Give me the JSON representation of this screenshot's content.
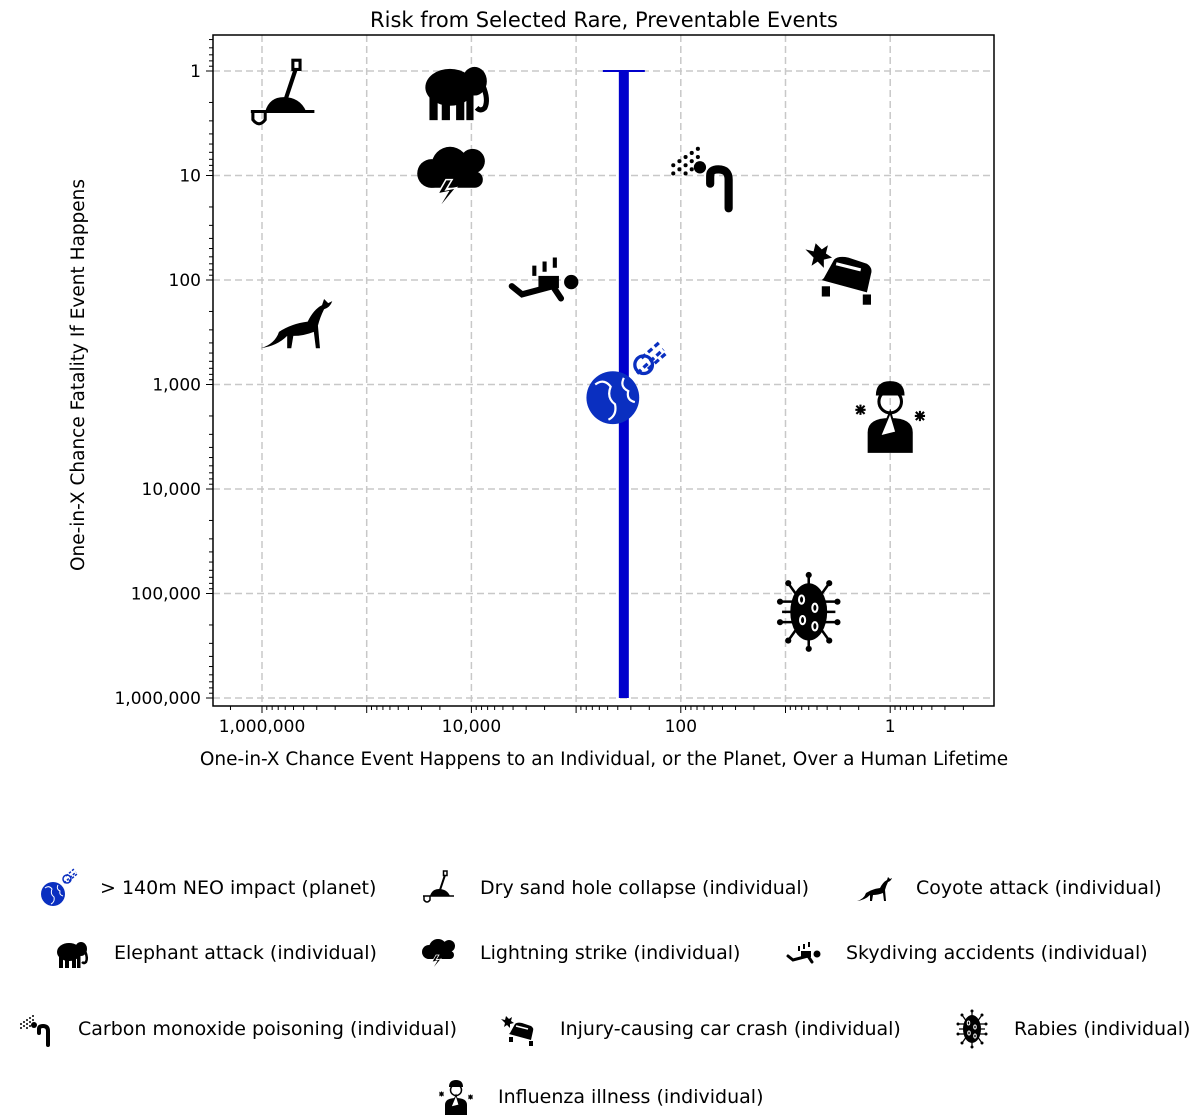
{
  "chart_data": {
    "type": "scatter",
    "title": "Risk from Selected Rare, Preventable Events",
    "xlabel": "One-in-X Chance Event Happens to an Individual, or the Planet, Over a Human Lifetime",
    "ylabel": "One-in-X Chance Fatality If Event Happens",
    "x_scale": "log",
    "x_reversed": true,
    "xlim": [
      3000000,
      0.1
    ],
    "y_scale": "log",
    "y_reversed": true,
    "ylim": [
      0.45,
      1500000
    ],
    "grid": true,
    "xticks": [
      {
        "v": 1000000,
        "label": "1,000,000"
      },
      {
        "v": 10000,
        "label": "10,000"
      },
      {
        "v": 100,
        "label": "100"
      },
      {
        "v": 1,
        "label": "1"
      }
    ],
    "yticks": [
      {
        "v": 1,
        "label": "1"
      },
      {
        "v": 10,
        "label": "10"
      },
      {
        "v": 100,
        "label": "100"
      },
      {
        "v": 1000,
        "label": "1,000"
      },
      {
        "v": 10000,
        "label": "10,000"
      },
      {
        "v": 100000,
        "label": "100,000"
      },
      {
        "v": 1000000,
        "label": "1,000,000"
      }
    ],
    "range_line": {
      "x": 350,
      "y_from": 1,
      "y_to": 1000000,
      "color": "#0000cc"
    },
    "points": [
      {
        "label": "> 140m NEO impact (planet)",
        "icon": "neo-icon",
        "x": 350,
        "y": 1000,
        "color": "#0a2fc0"
      },
      {
        "label": "Dry sand hole collapse (individual)",
        "icon": "shovel-sand-icon",
        "x": 650000,
        "y": 1.7,
        "color": "#000000"
      },
      {
        "label": "Coyote attack (individual)",
        "icon": "coyote-icon",
        "x": 480000,
        "y": 250,
        "color": "#000000"
      },
      {
        "label": "Elephant attack (individual)",
        "icon": "elephant-icon",
        "x": 14000,
        "y": 1.5,
        "color": "#000000"
      },
      {
        "label": "Lightning strike (individual)",
        "icon": "lightning-icon",
        "x": 16000,
        "y": 10,
        "color": "#000000"
      },
      {
        "label": "Skydiving accidents (individual)",
        "icon": "skydiver-icon",
        "x": 2000,
        "y": 100,
        "color": "#000000"
      },
      {
        "label": "Carbon monoxide poisoning (individual)",
        "icon": "carbon-monoxide-icon",
        "x": 60,
        "y": 10,
        "color": "#000000"
      },
      {
        "label": "Injury-causing car crash (individual)",
        "icon": "car-crash-icon",
        "x": 3,
        "y": 80,
        "color": "#000000"
      },
      {
        "label": "Rabies (individual)",
        "icon": "virus-icon",
        "x": 6,
        "y": 150000,
        "color": "#000000"
      },
      {
        "label": "Influenza illness (individual)",
        "icon": "influenza-icon",
        "x": 1,
        "y": 2000,
        "color": "#000000"
      }
    ]
  }
}
